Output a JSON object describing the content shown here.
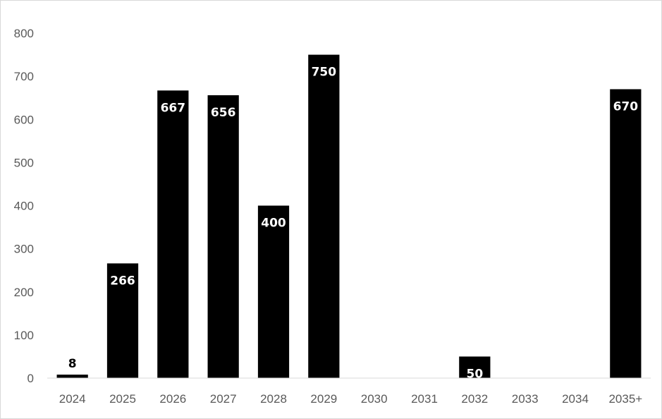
{
  "chart_data": {
    "type": "bar",
    "categories": [
      "2024",
      "2025",
      "2026",
      "2027",
      "2028",
      "2029",
      "2030",
      "2031",
      "2032",
      "2033",
      "2034",
      "2035+"
    ],
    "values": [
      8,
      266,
      667,
      656,
      400,
      750,
      null,
      null,
      50,
      null,
      null,
      670
    ],
    "data_labels": [
      "8",
      "266",
      "667",
      "656",
      "400",
      "750",
      "",
      "",
      "50",
      "",
      "",
      "670"
    ],
    "ylim": [
      0,
      800
    ],
    "yticks": [
      0,
      100,
      200,
      300,
      400,
      500,
      600,
      700,
      800
    ],
    "title": "",
    "xlabel": "",
    "ylabel": "",
    "grid": false,
    "legend": "none",
    "bar_color": "#000000"
  }
}
